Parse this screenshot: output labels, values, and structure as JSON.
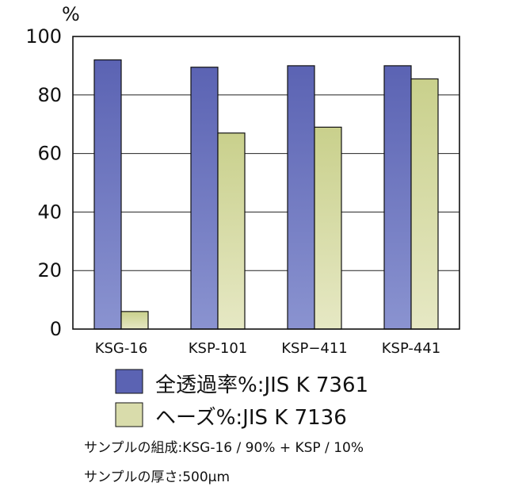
{
  "chart_data": {
    "type": "bar",
    "categories": [
      "KSG-16",
      "KSP-101",
      "KSP−411",
      "KSP-441"
    ],
    "series": [
      {
        "name": "全透過率%:JIS K 7361",
        "values": [
          92,
          89.5,
          90,
          90
        ],
        "color": "#5b63b3",
        "color_light": "#8a93d0"
      },
      {
        "name": "ヘーズ%:JIS K 7136",
        "values": [
          6,
          67,
          69,
          85.5
        ],
        "color": "#c9d08c",
        "color_light": "#e6e8c4"
      }
    ],
    "ylabel": "%",
    "ylim": [
      0,
      100
    ],
    "yticks": [
      0,
      20,
      40,
      60,
      80,
      100
    ],
    "grid": true,
    "legend_placement": "bottom"
  },
  "notes": {
    "composition": "サンプルの組成:KSG-16 / 90% + KSP / 10%",
    "thickness": "サンプルの厚さ:500μm"
  }
}
